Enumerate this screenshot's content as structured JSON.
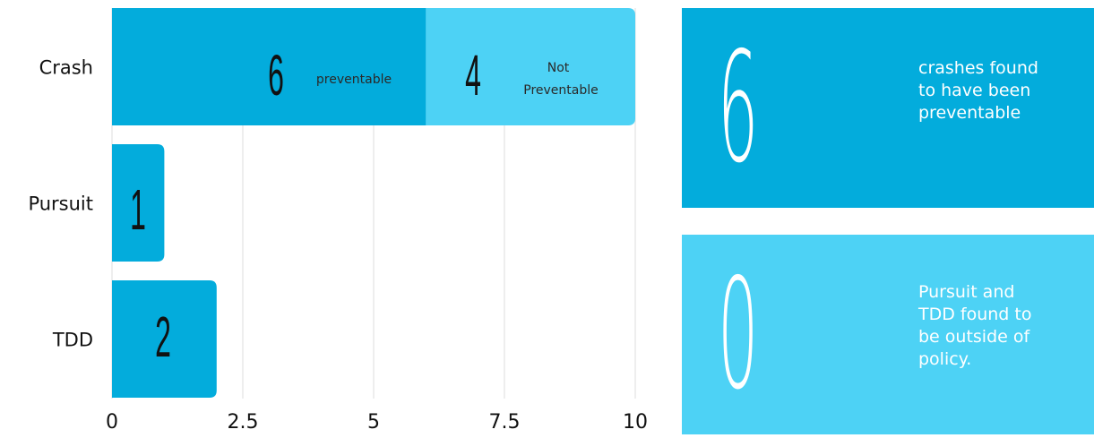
{
  "colors": {
    "dark_blue": "#03acdc",
    "light_blue": "#4dd2f5",
    "grid": "#dcdcdc",
    "text": "#111111"
  },
  "chart_data": {
    "type": "bar",
    "orientation": "horizontal",
    "stacked": true,
    "categories": [
      "Crash",
      "Pursuit",
      "TDD"
    ],
    "series": [
      {
        "name": "preventable",
        "values": [
          6,
          1,
          2
        ],
        "color": "#03acdc"
      },
      {
        "name": "Not Preventable",
        "values": [
          4,
          0,
          0
        ],
        "color": "#4dd2f5"
      }
    ],
    "xlim": [
      0,
      10
    ],
    "xticks": [
      "0",
      "2.5",
      "5",
      "7.5",
      "10"
    ],
    "xtick_values": [
      0,
      2.5,
      5,
      7.5,
      10
    ],
    "grid": true,
    "segment_labels": {
      "crash_preventable_value": "6",
      "crash_preventable_text": "preventable",
      "crash_not_value": "4",
      "crash_not_text_1": "Not",
      "crash_not_text_2": "Preventable",
      "pursuit_value": "1",
      "tdd_value": "2"
    }
  },
  "cards": [
    {
      "value": "6",
      "lines": [
        "crashes found",
        "to have been",
        "preventable"
      ],
      "color": "#03acdc"
    },
    {
      "value": "0",
      "lines": [
        "Pursuit and",
        "TDD found to",
        "be outside of",
        "policy."
      ],
      "color": "#4dd2f5"
    }
  ]
}
